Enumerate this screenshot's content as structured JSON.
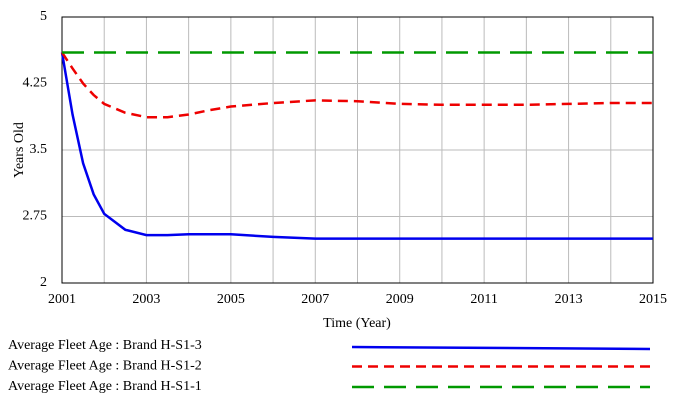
{
  "chart_data": {
    "type": "line",
    "xlabel": "Time (Year)",
    "ylabel": "Years Old",
    "x": [
      2001,
      2001.25,
      2001.5,
      2001.75,
      2002,
      2002.5,
      2003,
      2003.5,
      2004,
      2004.5,
      2005,
      2006,
      2007,
      2008,
      2009,
      2010,
      2011,
      2012,
      2013,
      2014,
      2015
    ],
    "series": [
      {
        "name": "Average Fleet Age : Brand H-S1-3",
        "color": "#0000ee",
        "dash": "solid",
        "values": [
          4.6,
          3.9,
          3.35,
          3.0,
          2.78,
          2.6,
          2.54,
          2.54,
          2.55,
          2.55,
          2.55,
          2.52,
          2.5,
          2.5,
          2.5,
          2.5,
          2.5,
          2.5,
          2.5,
          2.5,
          2.5
        ]
      },
      {
        "name": "Average Fleet Age : Brand H-S1-2",
        "color": "#ee0000",
        "dash": "short",
        "values": [
          4.6,
          4.42,
          4.25,
          4.12,
          4.02,
          3.92,
          3.87,
          3.87,
          3.9,
          3.95,
          3.99,
          4.03,
          4.06,
          4.05,
          4.02,
          4.01,
          4.01,
          4.01,
          4.02,
          4.03,
          4.03
        ]
      },
      {
        "name": "Average Fleet Age : Brand H-S1-1",
        "color": "#009900",
        "dash": "long",
        "values": [
          4.6,
          4.6,
          4.6,
          4.6,
          4.6,
          4.6,
          4.6,
          4.6,
          4.6,
          4.6,
          4.6,
          4.6,
          4.6,
          4.6,
          4.6,
          4.6,
          4.6,
          4.6,
          4.6,
          4.6,
          4.6
        ]
      }
    ],
    "xlim": [
      2001,
      2015
    ],
    "xticks": [
      2001,
      2003,
      2005,
      2007,
      2009,
      2011,
      2013,
      2015
    ],
    "xminor_ticks": [
      2002,
      2004,
      2006,
      2008,
      2010,
      2012,
      2014
    ],
    "ylim": [
      2,
      5
    ],
    "yticks": [
      2,
      2.75,
      3.5,
      4.25,
      5
    ],
    "grid": true
  }
}
